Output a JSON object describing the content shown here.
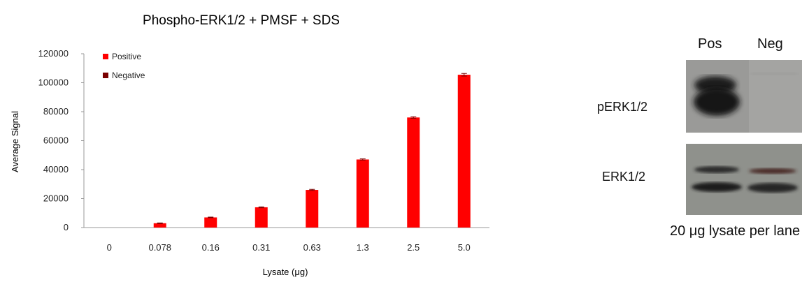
{
  "chart_data": {
    "type": "bar",
    "title": "Phospho-ERK1/2 + PMSF + SDS",
    "xlabel": "Lysate (μg)",
    "ylabel": "Average Signal",
    "categories": [
      "0",
      "0.078",
      "0.16",
      "0.31",
      "0.63",
      "1.3",
      "2.5",
      "5.0"
    ],
    "ylim": [
      0,
      120000
    ],
    "yticks": [
      "0",
      "20000",
      "40000",
      "60000",
      "80000",
      "100000",
      "120000"
    ],
    "grid": false,
    "legend_position": "top-left",
    "series": [
      {
        "name": "Positive",
        "color": "#ff0000",
        "values": [
          0,
          3000,
          7000,
          14000,
          26000,
          47000,
          76000,
          105500
        ],
        "errors": [
          0,
          200,
          200,
          300,
          400,
          400,
          500,
          900
        ]
      },
      {
        "name": "Negative",
        "color": "#7a0000",
        "values": [
          0,
          0,
          0,
          0,
          0,
          0,
          0,
          0
        ]
      }
    ]
  },
  "blot": {
    "lane_labels": [
      "Pos",
      "Neg"
    ],
    "rows": [
      {
        "label": "pERK1/2"
      },
      {
        "label": "ERK1/2"
      }
    ],
    "caption": "20 μg lysate per lane"
  }
}
